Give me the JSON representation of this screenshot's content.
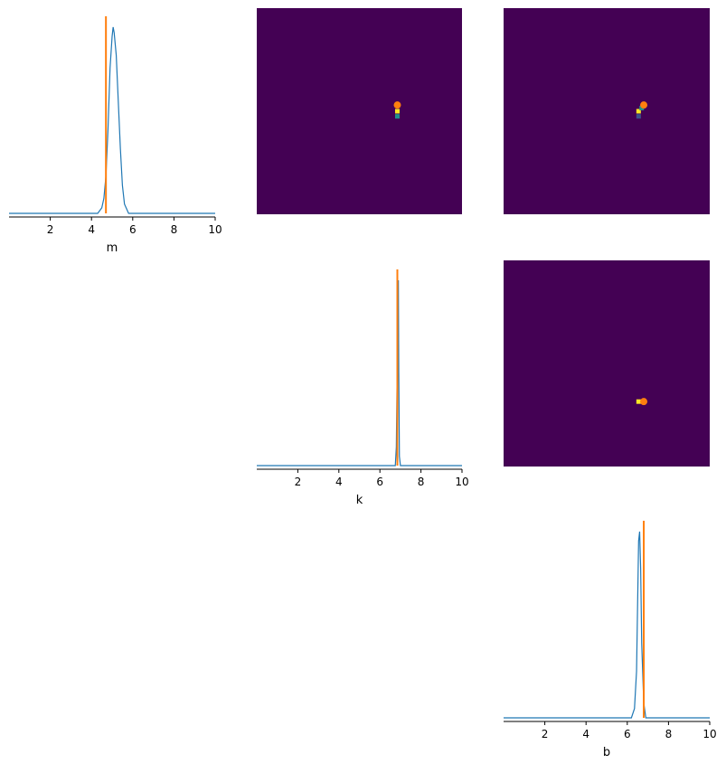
{
  "chart_data": [
    {
      "type": "line",
      "panel": "m-marginal",
      "xlabel": "m",
      "xlim": [
        0,
        10
      ],
      "xticks": [
        2,
        4,
        6,
        8,
        10
      ],
      "reference": 4.7,
      "x": [
        0,
        4.3,
        4.5,
        4.6,
        4.7,
        4.8,
        4.9,
        5.0,
        5.05,
        5.1,
        5.2,
        5.3,
        5.4,
        5.5,
        5.6,
        5.8,
        10
      ],
      "values": [
        0,
        0,
        0.03,
        0.08,
        0.2,
        0.45,
        0.78,
        0.95,
        1.0,
        0.97,
        0.85,
        0.6,
        0.35,
        0.15,
        0.05,
        0,
        0
      ]
    },
    {
      "type": "line",
      "panel": "k-marginal",
      "xlabel": "k",
      "xlim": [
        0,
        10
      ],
      "xticks": [
        2,
        4,
        6,
        8,
        10
      ],
      "reference": 6.85,
      "x": [
        0,
        6.75,
        6.8,
        6.85,
        6.88,
        6.9,
        6.92,
        6.95,
        7.0,
        10
      ],
      "values": [
        0,
        0,
        0.1,
        0.6,
        0.95,
        1.0,
        0.5,
        0.05,
        0,
        0
      ]
    },
    {
      "type": "line",
      "panel": "b-marginal",
      "xlabel": "b",
      "xlim": [
        0,
        10
      ],
      "xticks": [
        2,
        4,
        6,
        8,
        10
      ],
      "reference": 6.8,
      "x": [
        0,
        6.2,
        6.35,
        6.45,
        6.5,
        6.55,
        6.6,
        6.65,
        6.7,
        6.8,
        6.9,
        10
      ],
      "values": [
        0,
        0,
        0.05,
        0.25,
        0.6,
        0.95,
        1.0,
        0.8,
        0.4,
        0.08,
        0,
        0
      ]
    },
    {
      "type": "heatmap",
      "panel": "m-vs-k",
      "xlim": [
        0,
        10
      ],
      "ylim": [
        0,
        10
      ],
      "background": "#440154",
      "cells": [
        {
          "x": 6.85,
          "y": 5.0,
          "color": "#fde725"
        },
        {
          "x": 6.85,
          "y": 5.25,
          "color": "#21918c"
        }
      ],
      "reference": {
        "x": 6.85,
        "y": 4.7
      }
    },
    {
      "type": "heatmap",
      "panel": "m-vs-b",
      "xlim": [
        0,
        10
      ],
      "ylim": [
        0,
        10
      ],
      "background": "#440154",
      "cells": [
        {
          "x": 6.55,
          "y": 5.0,
          "color": "#fde725"
        },
        {
          "x": 6.7,
          "y": 4.85,
          "color": "#21918c"
        },
        {
          "x": 6.55,
          "y": 5.25,
          "color": "#3b528b"
        }
      ],
      "reference": {
        "x": 6.8,
        "y": 4.7
      }
    },
    {
      "type": "heatmap",
      "panel": "k-vs-b",
      "xlim": [
        0,
        10
      ],
      "ylim": [
        0,
        10
      ],
      "background": "#440154",
      "cells": [
        {
          "x": 6.55,
          "y": 6.85,
          "color": "#fde725"
        }
      ],
      "reference": {
        "x": 6.8,
        "y": 6.85
      }
    }
  ],
  "colors": {
    "posterior": "#1f77b4",
    "reference": "#ff7f0e",
    "axis": "#000000"
  }
}
